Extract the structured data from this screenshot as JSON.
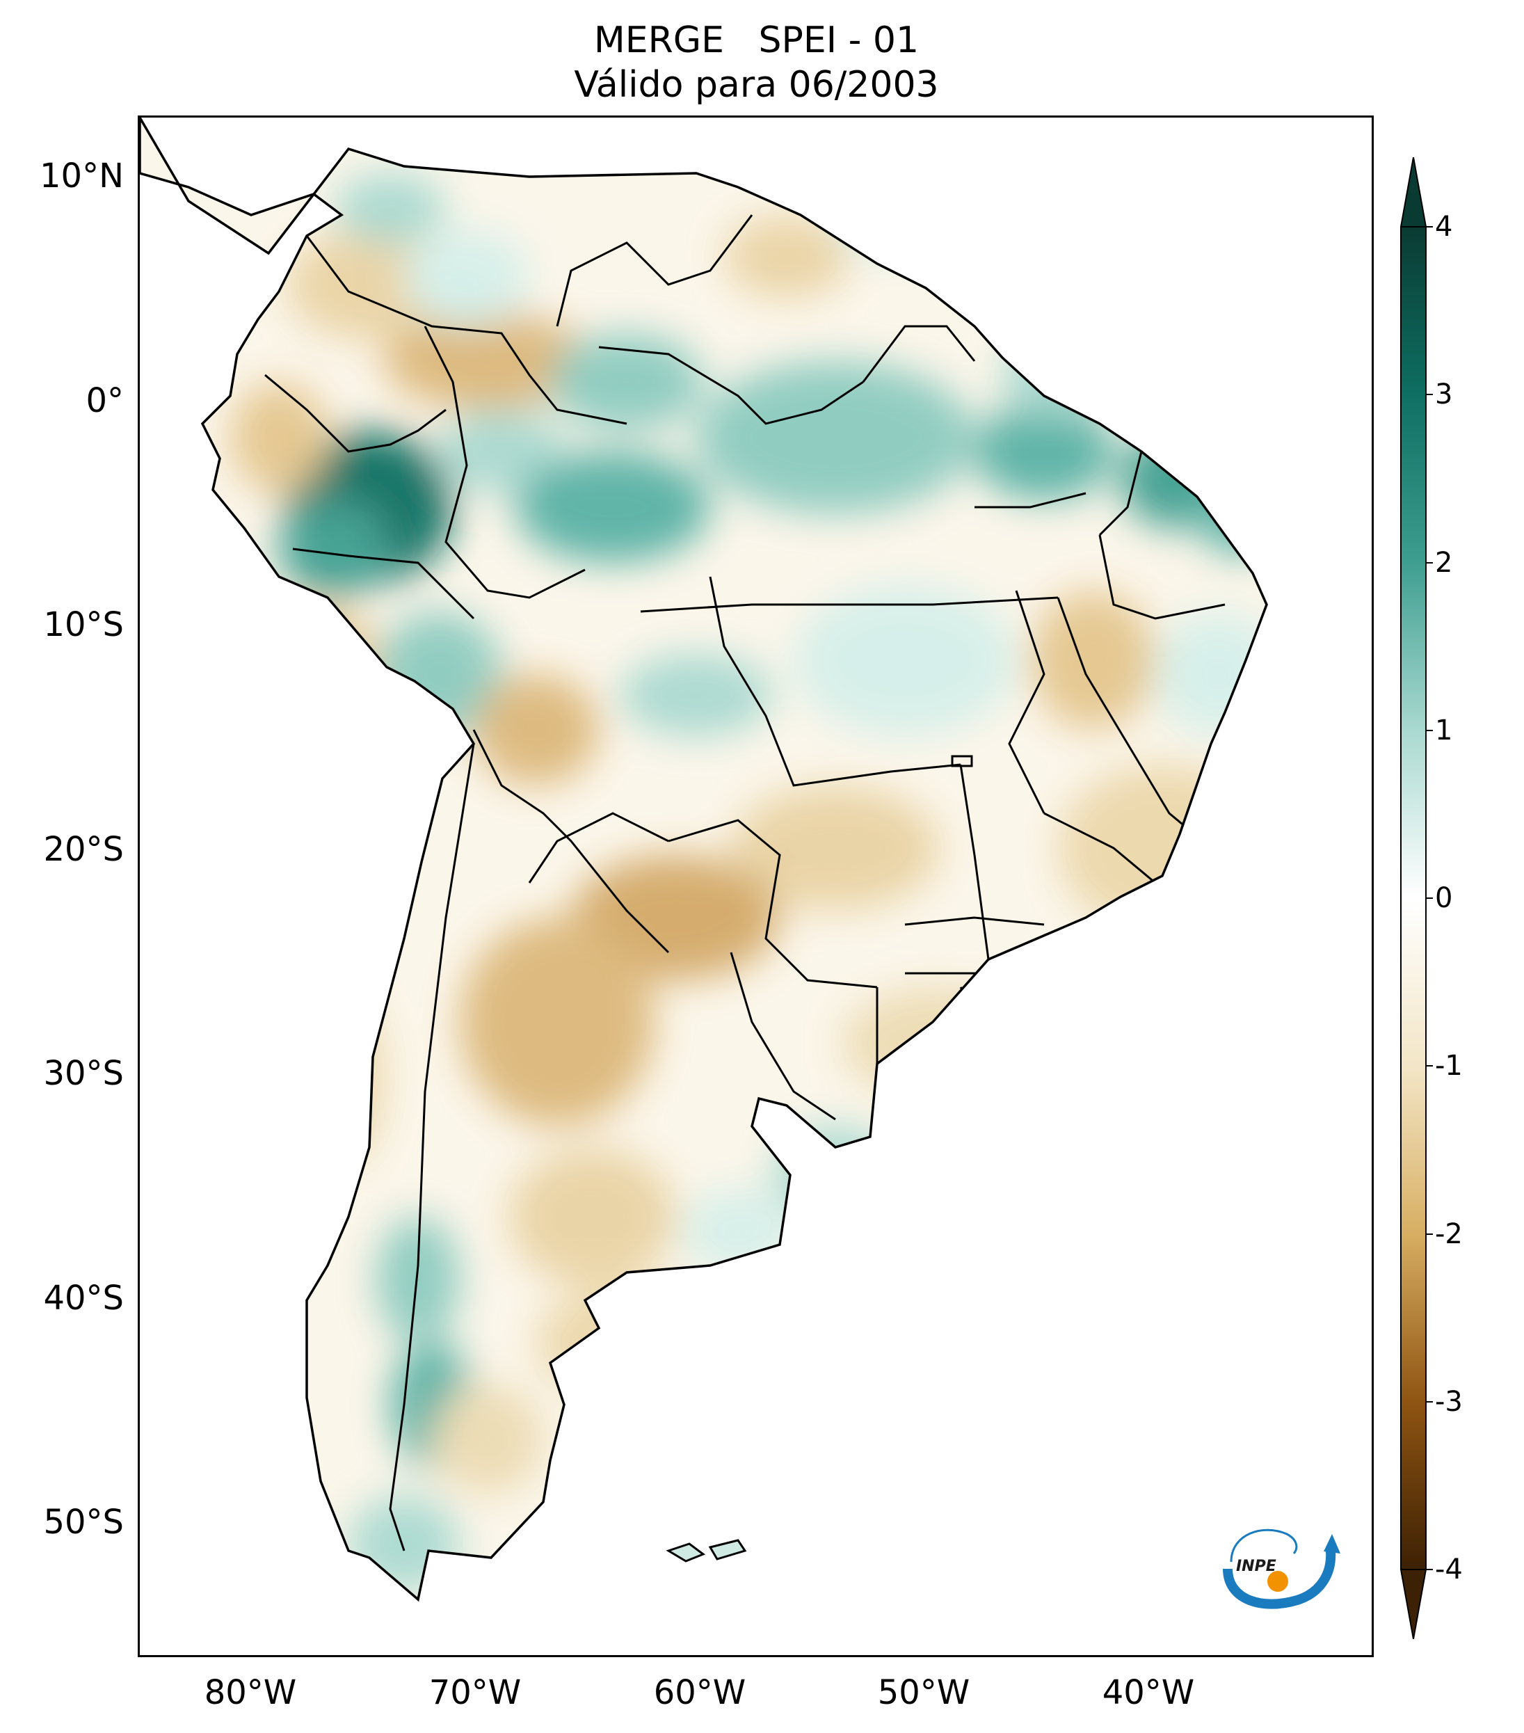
{
  "title": {
    "line1": "MERGE   SPEI - 01",
    "line2": "Válido para 06/2003"
  },
  "map": {
    "region": "South America",
    "variable": "SPEI - 01",
    "lat_labels": [
      "10°N",
      "0°",
      "10°S",
      "20°S",
      "30°S",
      "40°S",
      "50°S"
    ],
    "lon_labels": [
      "80°W",
      "70°W",
      "60°W",
      "50°W",
      "40°W"
    ],
    "extent": {
      "lon": [
        -85,
        -30
      ],
      "lat": [
        -56,
        13
      ]
    }
  },
  "colorbar": {
    "ticks": [
      "4",
      "3",
      "2",
      "1",
      "0",
      "-1",
      "-2",
      "-3",
      "-4"
    ],
    "range": [
      -4,
      4
    ],
    "colors": {
      "min": "#3d2104",
      "dry_strong": "#8f5412",
      "dry_mid": "#d7ae62",
      "dry_light": "#f3e6c7",
      "neutral": "#ffffff",
      "wet_light": "#d5efea",
      "wet_mid": "#59b1a5",
      "wet_strong": "#0e6f62",
      "max": "#0a3b33"
    }
  },
  "logo": {
    "text": "INPE",
    "colors": {
      "arc": "#1a7bbf",
      "dot": "#f39200"
    }
  }
}
